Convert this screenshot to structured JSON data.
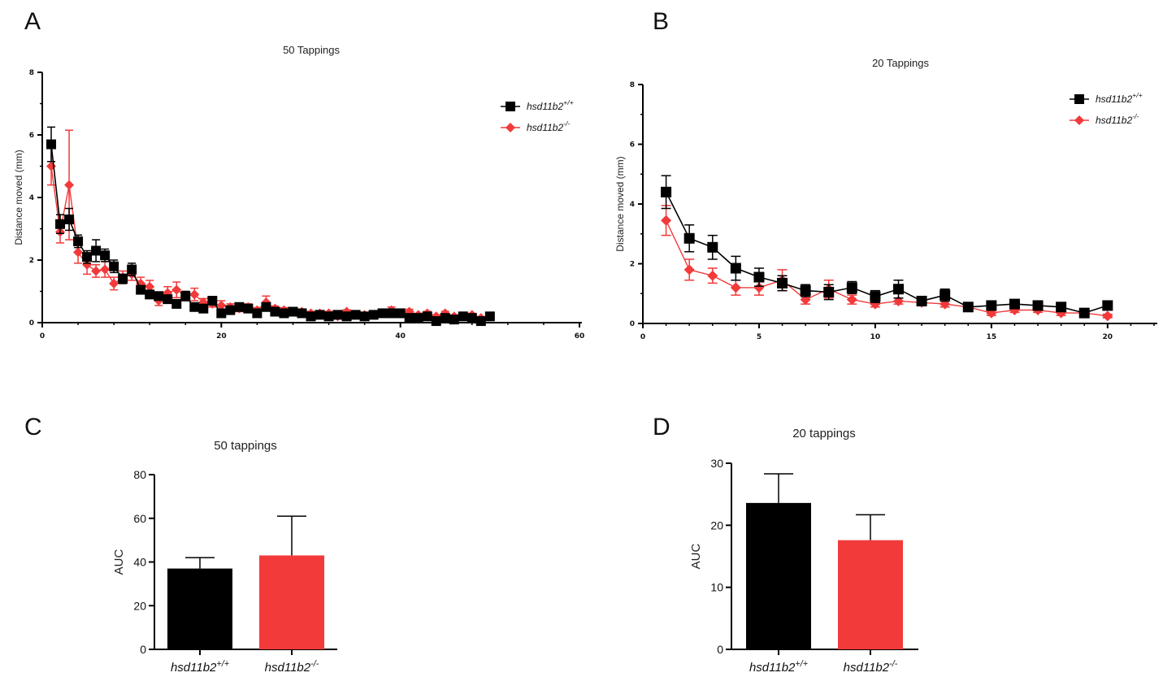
{
  "panels": {
    "A": "A",
    "B": "B",
    "C": "C",
    "D": "D"
  },
  "legend": {
    "wt_base": "hsd11b2",
    "wt_sup": "+/+",
    "ko_base": "hsd11b2",
    "ko_sup": "-/-"
  },
  "colors": {
    "wt": "#000000",
    "ko": "#f23a3a"
  },
  "chart_data": [
    {
      "id": "A",
      "type": "line",
      "title": "50 Tappings",
      "xlabel": "",
      "ylabel": "Distance moved (mm)",
      "xlim": [
        0,
        60
      ],
      "ylim": [
        0,
        8
      ],
      "xticks": [
        0,
        20,
        40,
        60
      ],
      "yticks": [
        0,
        2,
        4,
        6,
        8
      ],
      "legend_position": "top-right",
      "series": [
        {
          "name": "hsd11b2+/+",
          "color": "#000000",
          "marker": "square",
          "x": [
            1,
            2,
            3,
            4,
            5,
            6,
            7,
            8,
            9,
            10,
            11,
            12,
            13,
            14,
            15,
            16,
            17,
            18,
            19,
            20,
            21,
            22,
            23,
            24,
            25,
            26,
            27,
            28,
            29,
            30,
            31,
            32,
            33,
            34,
            35,
            36,
            37,
            38,
            39,
            40,
            41,
            42,
            43,
            44,
            45,
            46,
            47,
            48,
            49,
            50
          ],
          "y": [
            5.7,
            3.15,
            3.3,
            2.6,
            2.1,
            2.3,
            2.15,
            1.8,
            1.4,
            1.7,
            1.05,
            0.9,
            0.85,
            0.75,
            0.6,
            0.85,
            0.5,
            0.45,
            0.7,
            0.3,
            0.4,
            0.5,
            0.45,
            0.3,
            0.5,
            0.35,
            0.3,
            0.35,
            0.3,
            0.2,
            0.25,
            0.2,
            0.25,
            0.2,
            0.25,
            0.2,
            0.25,
            0.3,
            0.3,
            0.3,
            0.15,
            0.15,
            0.2,
            0.05,
            0.15,
            0.1,
            0.2,
            0.15,
            0.05,
            0.2
          ],
          "err": [
            0.55,
            0.3,
            0.35,
            0.2,
            0.2,
            0.35,
            0.2,
            0.2,
            0.15,
            0.2,
            0.12,
            0.1,
            0.1,
            0.1,
            0.08,
            0.15,
            0.08,
            0.08,
            0.08,
            0.05,
            0.06,
            0.06,
            0.06,
            0.05,
            0.06,
            0.05,
            0.05,
            0.05,
            0.05,
            0.04,
            0.04,
            0.04,
            0.04,
            0.04,
            0.04,
            0.04,
            0.04,
            0.05,
            0.05,
            0.05,
            0.04,
            0.04,
            0.04,
            0.03,
            0.04,
            0.03,
            0.04,
            0.04,
            0.03,
            0.04
          ]
        },
        {
          "name": "hsd11b2-/-",
          "color": "#f23a3a",
          "marker": "diamond",
          "x": [
            1,
            2,
            3,
            4,
            5,
            6,
            7,
            8,
            9,
            10,
            11,
            12,
            13,
            14,
            15,
            16,
            17,
            18,
            19,
            20,
            21,
            22,
            23,
            24,
            25,
            26,
            27,
            28,
            29,
            30,
            31,
            32,
            33,
            34,
            35,
            36,
            37,
            38,
            39,
            40,
            41,
            42,
            43,
            44,
            45,
            46,
            47,
            48,
            49,
            50
          ],
          "y": [
            5.0,
            2.9,
            4.4,
            2.25,
            1.85,
            1.65,
            1.7,
            1.25,
            1.45,
            1.55,
            1.25,
            1.15,
            0.7,
            0.95,
            1.05,
            0.85,
            0.9,
            0.65,
            0.6,
            0.55,
            0.5,
            0.45,
            0.5,
            0.4,
            0.65,
            0.45,
            0.4,
            0.35,
            0.35,
            0.3,
            0.3,
            0.3,
            0.2,
            0.35,
            0.25,
            0.25,
            0.25,
            0.3,
            0.4,
            0.3,
            0.35,
            0.25,
            0.3,
            0.2,
            0.3,
            0.2,
            0.2,
            0.25,
            0.15,
            0.2
          ],
          "err": [
            0.6,
            0.35,
            1.75,
            0.35,
            0.3,
            0.2,
            0.25,
            0.2,
            0.2,
            0.2,
            0.2,
            0.2,
            0.15,
            0.2,
            0.25,
            0.15,
            0.2,
            0.12,
            0.1,
            0.15,
            0.1,
            0.1,
            0.1,
            0.08,
            0.2,
            0.08,
            0.08,
            0.08,
            0.08,
            0.06,
            0.06,
            0.06,
            0.05,
            0.06,
            0.05,
            0.05,
            0.05,
            0.06,
            0.1,
            0.06,
            0.08,
            0.05,
            0.06,
            0.05,
            0.06,
            0.05,
            0.05,
            0.05,
            0.04,
            0.05
          ]
        }
      ]
    },
    {
      "id": "B",
      "type": "line",
      "title": "20 Tappings",
      "xlabel": "",
      "ylabel": "Distance moved (mm)",
      "xlim": [
        0,
        22
      ],
      "ylim": [
        0,
        8
      ],
      "xticks": [
        0,
        5,
        10,
        15,
        20
      ],
      "yticks": [
        0,
        2,
        4,
        6,
        8
      ],
      "legend_position": "top-right",
      "series": [
        {
          "name": "hsd11b2+/+",
          "color": "#000000",
          "marker": "square",
          "x": [
            1,
            2,
            3,
            4,
            5,
            6,
            7,
            8,
            9,
            10,
            11,
            12,
            13,
            14,
            15,
            16,
            17,
            18,
            19,
            20
          ],
          "y": [
            4.4,
            2.85,
            2.55,
            1.85,
            1.55,
            1.35,
            1.1,
            1.05,
            1.2,
            0.9,
            1.15,
            0.75,
            0.95,
            0.55,
            0.6,
            0.65,
            0.6,
            0.55,
            0.35,
            0.6
          ],
          "err": [
            0.55,
            0.45,
            0.4,
            0.4,
            0.3,
            0.25,
            0.2,
            0.25,
            0.2,
            0.2,
            0.3,
            0.1,
            0.2,
            0.08,
            0.1,
            0.15,
            0.1,
            0.1,
            0.08,
            0.1
          ]
        },
        {
          "name": "hsd11b2-/-",
          "color": "#f23a3a",
          "marker": "diamond",
          "x": [
            1,
            2,
            3,
            4,
            5,
            6,
            7,
            8,
            9,
            10,
            11,
            12,
            13,
            14,
            15,
            16,
            17,
            18,
            19,
            20
          ],
          "y": [
            3.45,
            1.8,
            1.6,
            1.2,
            1.2,
            1.45,
            0.8,
            1.15,
            0.8,
            0.65,
            0.75,
            0.7,
            0.65,
            0.55,
            0.35,
            0.45,
            0.45,
            0.35,
            0.35,
            0.25
          ],
          "err": [
            0.5,
            0.35,
            0.25,
            0.25,
            0.25,
            0.35,
            0.15,
            0.3,
            0.15,
            0.1,
            0.1,
            0.1,
            0.1,
            0.08,
            0.08,
            0.08,
            0.08,
            0.08,
            0.08,
            0.06
          ]
        }
      ]
    },
    {
      "id": "C",
      "type": "bar",
      "title": "50 tappings",
      "xlabel": "",
      "ylabel": "AUC",
      "categories": [
        "hsd11b2+/+",
        "hsd11b2-/-"
      ],
      "cat_base": [
        "hsd11b2",
        "hsd11b2"
      ],
      "cat_sup": [
        "+/+",
        "-/-"
      ],
      "values": [
        37,
        43
      ],
      "errors": [
        5,
        18
      ],
      "ylim": [
        0,
        80
      ],
      "yticks": [
        0,
        20,
        40,
        60,
        80
      ]
    },
    {
      "id": "D",
      "type": "bar",
      "title": "20 tappings",
      "xlabel": "",
      "ylabel": "AUC",
      "categories": [
        "hsd11b2+/+",
        "hsd11b2-/-"
      ],
      "cat_base": [
        "hsd11b2",
        "hsd11b2"
      ],
      "cat_sup": [
        "+/+",
        "-/-"
      ],
      "values": [
        23.6,
        17.6
      ],
      "errors": [
        4.7,
        4.1
      ],
      "ylim": [
        0,
        30
      ],
      "yticks": [
        0,
        10,
        20,
        30
      ]
    }
  ]
}
